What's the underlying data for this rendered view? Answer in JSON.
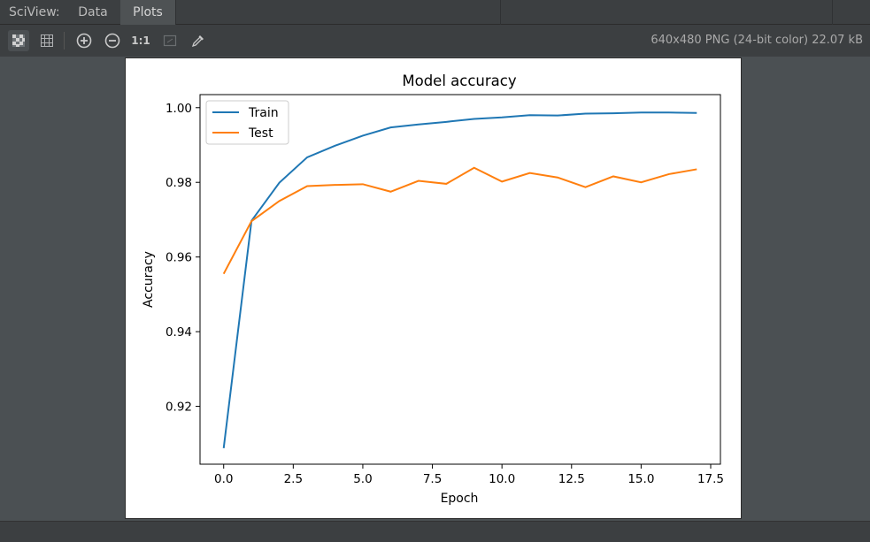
{
  "tabbar": {
    "label": "SciView:",
    "tabs": [
      {
        "label": "Data",
        "active": false
      },
      {
        "label": "Plots",
        "active": true
      }
    ]
  },
  "toolbar": {
    "tools": [
      {
        "icon": "transparency-grid-icon",
        "active": true
      },
      {
        "icon": "pixel-grid-icon",
        "active": false
      },
      {
        "icon": "zoom-in-icon",
        "active": false
      },
      {
        "icon": "zoom-out-icon",
        "active": false
      },
      {
        "icon": "actual-size-icon",
        "label": "1:1",
        "active": false
      },
      {
        "icon": "fit-window-icon",
        "active": false
      },
      {
        "icon": "color-picker-icon",
        "active": false
      }
    ],
    "image_info": "640x480 PNG (24-bit color) 22.07 kB"
  },
  "colors": {
    "train": "#1f77b4",
    "test": "#ff7f0e"
  },
  "chart_data": {
    "type": "line",
    "title": "Model accuracy",
    "xlabel": "Epoch",
    "ylabel": "Accuracy",
    "xlim": [
      -0.85,
      17.85
    ],
    "ylim": [
      0.9045,
      1.0035
    ],
    "xticks": [
      "0.0",
      "2.5",
      "5.0",
      "7.5",
      "10.0",
      "12.5",
      "15.0",
      "17.5"
    ],
    "yticks": [
      "0.92",
      "0.94",
      "0.96",
      "0.98",
      "1.00"
    ],
    "legend_position": "upper-left",
    "x": [
      0,
      1,
      2,
      3,
      4,
      5,
      6,
      7,
      8,
      9,
      10,
      11,
      12,
      13,
      14,
      15,
      16,
      17
    ],
    "series": [
      {
        "name": "Train",
        "values": [
          0.9088,
          0.9697,
          0.9799,
          0.9867,
          0.9898,
          0.9925,
          0.9947,
          0.9955,
          0.9962,
          0.997,
          0.9974,
          0.998,
          0.9979,
          0.9984,
          0.9985,
          0.9987,
          0.9987,
          0.9986
        ]
      },
      {
        "name": "Test",
        "values": [
          0.9555,
          0.9696,
          0.975,
          0.979,
          0.9793,
          0.9795,
          0.9775,
          0.9804,
          0.9796,
          0.9839,
          0.9802,
          0.9825,
          0.9813,
          0.9787,
          0.9816,
          0.98,
          0.9822,
          0.9835
        ]
      }
    ]
  }
}
